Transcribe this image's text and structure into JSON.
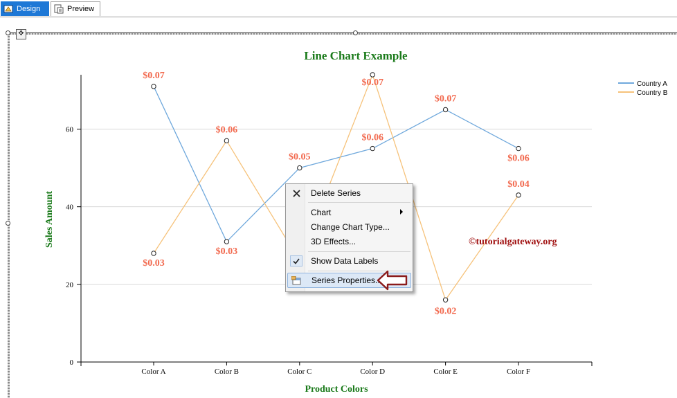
{
  "tabs": [
    {
      "label": "Design",
      "icon": "design-icon",
      "active": true
    },
    {
      "label": "Preview",
      "icon": "preview-icon",
      "active": false
    }
  ],
  "chart_data": {
    "type": "line",
    "title": "Line Chart Example",
    "xlabel": "Product Colors",
    "ylabel": "Sales Amount",
    "categories": [
      "Color A",
      "Color B",
      "Color C",
      "Color D",
      "Color E",
      "Color F"
    ],
    "ylim": [
      0,
      74
    ],
    "yticks": [
      0,
      20,
      40,
      60
    ],
    "grid": true,
    "legend": "top-right",
    "series": [
      {
        "name": "Country A",
        "color": "#6fa8dc",
        "values": [
          71,
          31,
          50,
          55,
          65,
          55
        ],
        "labels": [
          "$0.07",
          "$0.03",
          "$0.05",
          "$0.06",
          "$0.07",
          "$0.06"
        ]
      },
      {
        "name": "Country B",
        "color": "#f6c27a",
        "values": [
          28,
          57,
          26,
          74,
          16,
          43
        ],
        "labels": [
          "$0.03",
          "$0.06",
          "",
          "$0.07",
          "$0.02",
          "$0.04"
        ]
      }
    ],
    "title_color": "#1a7a1a",
    "label_color": "#f26a4f"
  },
  "watermark": "©tutorialgateway.org",
  "context_menu": {
    "items": [
      {
        "label": "Delete Series",
        "icon": "close-icon"
      },
      {
        "label": "Chart",
        "submenu": true
      },
      {
        "label": "Change Chart Type..."
      },
      {
        "label": "3D Effects..."
      },
      {
        "label": "Show Data Labels",
        "icon": "check-icon",
        "checked": true
      },
      {
        "label": "Series Properties...",
        "icon": "series-properties-icon",
        "highlighted": true
      }
    ]
  }
}
